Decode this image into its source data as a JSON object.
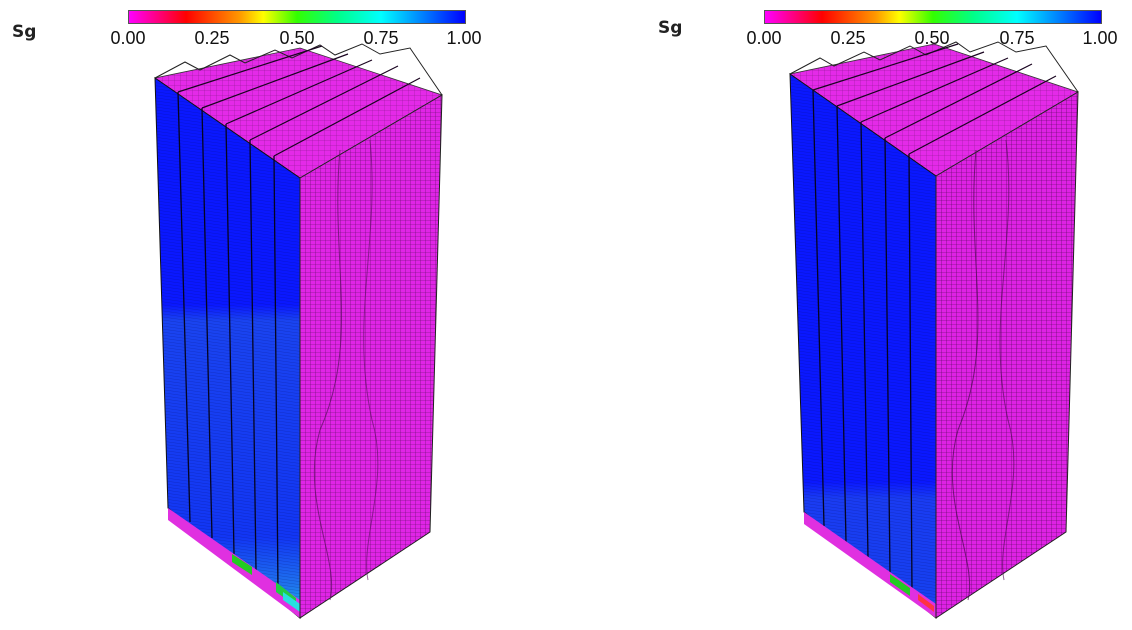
{
  "panels": [
    {
      "variable_label": "Sg",
      "colorbar": {
        "ticks": [
          "0.00",
          "0.25",
          "0.50",
          "0.75",
          "1.00"
        ],
        "min": 0.0,
        "max": 1.0
      },
      "colors": {
        "low": "#ff00ff",
        "high": "#0000ff"
      }
    },
    {
      "variable_label": "Sg",
      "colorbar": {
        "ticks": [
          "0.00",
          "0.25",
          "0.50",
          "0.75",
          "1.00"
        ],
        "min": 0.0,
        "max": 1.0
      },
      "colors": {
        "low": "#ff00ff",
        "high": "#0000ff"
      }
    }
  ]
}
